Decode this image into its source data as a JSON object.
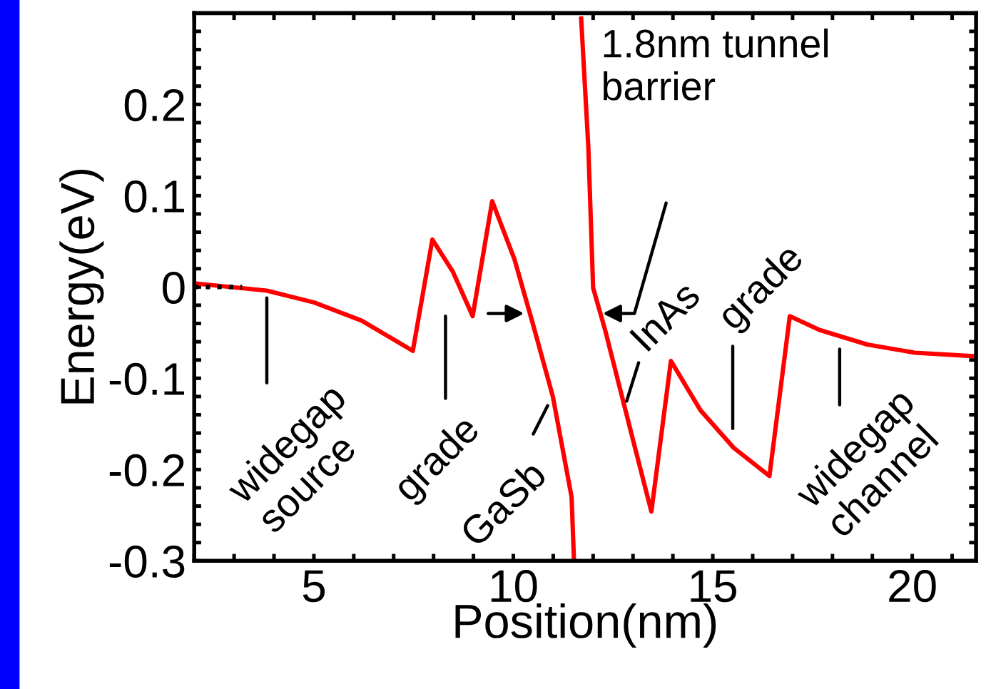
{
  "chart_data": {
    "type": "line",
    "xlabel": "Position(nm)",
    "ylabel": "Energy(eV)",
    "xlim": [
      2,
      21.6
    ],
    "ylim": [
      -0.3,
      0.3
    ],
    "xticks": [
      {
        "value": 2,
        "label": null
      },
      {
        "value": 3,
        "label": null
      },
      {
        "value": 4,
        "label": null
      },
      5,
      {
        "value": 6,
        "label": null
      },
      {
        "value": 7,
        "label": null
      },
      {
        "value": 8,
        "label": null
      },
      {
        "value": 9,
        "label": null
      },
      10,
      {
        "value": 11,
        "label": null
      },
      {
        "value": 12,
        "label": null
      },
      {
        "value": 13,
        "label": null
      },
      {
        "value": 14,
        "label": null
      },
      15,
      {
        "value": 16,
        "label": null
      },
      {
        "value": 17,
        "label": null
      },
      {
        "value": 18,
        "label": null
      },
      {
        "value": 19,
        "label": null
      },
      20,
      {
        "value": 21,
        "label": null
      }
    ],
    "yticks": [
      -0.3,
      {
        "value": -0.28,
        "label": null
      },
      {
        "value": -0.26,
        "label": null
      },
      {
        "value": -0.24,
        "label": null
      },
      {
        "value": -0.22,
        "label": null
      },
      -0.2,
      {
        "value": -0.18,
        "label": null
      },
      {
        "value": -0.16,
        "label": null
      },
      {
        "value": -0.14,
        "label": null
      },
      {
        "value": -0.12,
        "label": null
      },
      -0.1,
      {
        "value": -0.08,
        "label": null
      },
      {
        "value": -0.06,
        "label": null
      },
      {
        "value": -0.04,
        "label": null
      },
      {
        "value": -0.02,
        "label": null
      },
      0,
      {
        "value": 0.02,
        "label": null
      },
      {
        "value": 0.04,
        "label": null
      },
      {
        "value": 0.06,
        "label": null
      },
      {
        "value": 0.08,
        "label": null
      },
      0.1,
      {
        "value": 0.12,
        "label": null
      },
      {
        "value": 0.14,
        "label": null
      },
      {
        "value": 0.16,
        "label": null
      },
      {
        "value": 0.18,
        "label": null
      },
      0.2,
      {
        "value": 0.22,
        "label": null
      },
      {
        "value": 0.24,
        "label": null
      },
      {
        "value": 0.26,
        "label": null
      },
      {
        "value": 0.28,
        "label": null
      }
    ],
    "grid": false,
    "legend": false,
    "marker": "none",
    "series": [
      {
        "color": "#ff0000",
        "line_style": "solid",
        "x": [
          2.0,
          3.82,
          5.01,
          6.2,
          7.48,
          7.97,
          8.48,
          8.98,
          9.47,
          10.03,
          10.5,
          10.99,
          11.46,
          11.52,
          11.6,
          11.7,
          11.88,
          12.0,
          12.3,
          13.02,
          13.46,
          13.95,
          14.69,
          15.52,
          16.42,
          16.93,
          17.67,
          18.87,
          20.06,
          21.6
        ],
        "values": [
          0.004,
          -0.004,
          -0.017,
          -0.037,
          -0.07,
          0.052,
          0.017,
          -0.032,
          0.094,
          0.03,
          -0.042,
          -0.12,
          -0.23,
          -0.3,
          null,
          0.294,
          0.153,
          -0.001,
          -0.047,
          -0.171,
          -0.246,
          -0.081,
          -0.135,
          -0.176,
          -0.207,
          -0.032,
          -0.047,
          -0.063,
          -0.072,
          -0.076
        ]
      },
      {
        "color": "#000000",
        "line_style": "dotted",
        "x": [
          2.0,
          3.2
        ],
        "values": [
          0.0,
          0.0
        ]
      }
    ],
    "annotations": [
      {
        "text": "widegap\nsource",
        "x": 3.82,
        "y": -0.004
      },
      "grade",
      "GaSb",
      "InAs",
      "grade",
      "widegap\nchannel",
      "1.8nm tunnel\nbarrier"
    ]
  }
}
